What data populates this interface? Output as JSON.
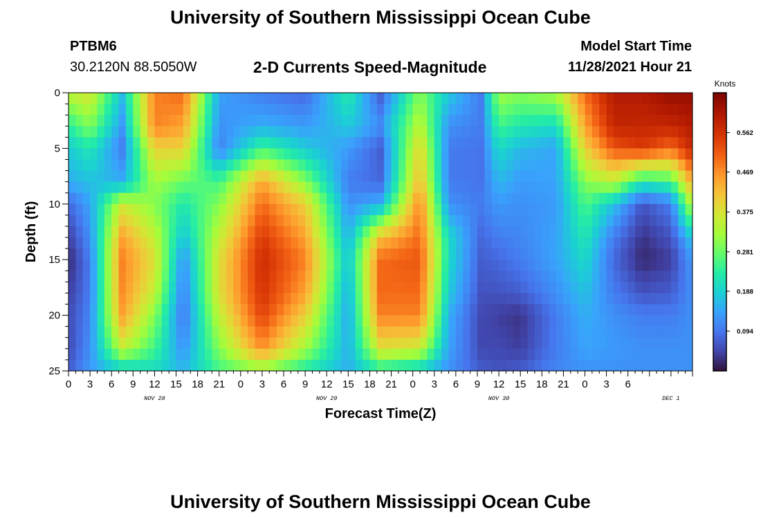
{
  "header": {
    "title": "University of Southern Mississippi Ocean Cube",
    "station": "PTBM6",
    "location": "30.2120N  88.5050W",
    "subtitle": "2-D Currents Speed-Magnitude",
    "model_start_label": "Model Start Time",
    "model_start_value": "11/28/2021 Hour 21"
  },
  "footer": {
    "title": "University of Southern Mississippi Ocean Cube"
  },
  "chart_data": {
    "type": "heatmap",
    "title": "2-D Currents Speed-Magnitude",
    "xlabel": "Forecast Time(Z)",
    "ylabel": "Depth (ft)",
    "x_hours": [
      0,
      87
    ],
    "x_tick_labels": [
      "0",
      "3",
      "6",
      "9",
      "12",
      "15",
      "18",
      "21",
      "0",
      "3",
      "6",
      "9",
      "12",
      "15",
      "18",
      "21",
      "0",
      "3",
      "6",
      "9",
      "12",
      "15",
      "18",
      "21",
      "0",
      "3",
      "6"
    ],
    "date_labels": [
      {
        "label": "NOV 28",
        "hour": 12
      },
      {
        "label": "NOV 29",
        "hour": 36
      },
      {
        "label": "NOV 30",
        "hour": 60
      },
      {
        "label": "DEC 1",
        "hour": 84
      }
    ],
    "y_ticks": [
      0,
      5,
      10,
      15,
      20,
      25
    ],
    "ylim": [
      0,
      25
    ],
    "y_inverted": true,
    "colorbar": {
      "unit": "Knots",
      "range": [
        0,
        0.656
      ],
      "labels": [
        "0.562",
        "0.469",
        "0.375",
        "0.281",
        "0.188",
        "0.094"
      ]
    },
    "grid_times": [
      0,
      3,
      7.5,
      12,
      16,
      21,
      27,
      33,
      39,
      43.5,
      49,
      53,
      57.5,
      60,
      63,
      68,
      72,
      76,
      80,
      84,
      87
    ],
    "grid_depths": [
      0,
      3,
      5,
      8,
      10,
      13,
      15,
      18,
      20,
      23,
      25
    ],
    "speed_knots": [
      [
        0.35,
        0.37,
        0.17,
        0.48,
        0.5,
        0.14,
        0.1,
        0.08,
        0.23,
        0.07,
        0.3,
        0.18,
        0.1,
        0.32,
        0.3,
        0.33,
        0.5,
        0.6,
        0.6,
        0.63,
        0.63
      ],
      [
        0.23,
        0.3,
        0.13,
        0.48,
        0.45,
        0.12,
        0.15,
        0.13,
        0.18,
        0.12,
        0.35,
        0.12,
        0.1,
        0.25,
        0.22,
        0.2,
        0.45,
        0.58,
        0.58,
        0.58,
        0.6
      ],
      [
        0.18,
        0.22,
        0.1,
        0.4,
        0.4,
        0.1,
        0.25,
        0.18,
        0.13,
        0.07,
        0.4,
        0.1,
        0.09,
        0.2,
        0.16,
        0.14,
        0.4,
        0.52,
        0.55,
        0.5,
        0.58
      ],
      [
        0.15,
        0.17,
        0.15,
        0.32,
        0.28,
        0.25,
        0.45,
        0.3,
        0.1,
        0.08,
        0.43,
        0.1,
        0.09,
        0.16,
        0.13,
        0.14,
        0.3,
        0.35,
        0.22,
        0.25,
        0.45
      ],
      [
        0.08,
        0.14,
        0.36,
        0.3,
        0.22,
        0.3,
        0.5,
        0.4,
        0.12,
        0.15,
        0.48,
        0.12,
        0.1,
        0.13,
        0.12,
        0.13,
        0.26,
        0.17,
        0.06,
        0.1,
        0.35
      ],
      [
        0.04,
        0.12,
        0.45,
        0.35,
        0.17,
        0.35,
        0.55,
        0.45,
        0.15,
        0.42,
        0.5,
        0.2,
        0.08,
        0.1,
        0.11,
        0.14,
        0.22,
        0.1,
        0.03,
        0.06,
        0.18
      ],
      [
        0.02,
        0.1,
        0.48,
        0.38,
        0.12,
        0.38,
        0.57,
        0.48,
        0.17,
        0.5,
        0.52,
        0.2,
        0.07,
        0.08,
        0.1,
        0.14,
        0.2,
        0.08,
        0.02,
        0.04,
        0.13
      ],
      [
        0.04,
        0.1,
        0.47,
        0.35,
        0.1,
        0.38,
        0.56,
        0.45,
        0.15,
        0.5,
        0.5,
        0.18,
        0.06,
        0.06,
        0.07,
        0.12,
        0.17,
        0.1,
        0.06,
        0.07,
        0.12
      ],
      [
        0.05,
        0.11,
        0.45,
        0.3,
        0.09,
        0.35,
        0.54,
        0.4,
        0.14,
        0.48,
        0.48,
        0.15,
        0.05,
        0.04,
        0.03,
        0.1,
        0.15,
        0.12,
        0.1,
        0.1,
        0.12
      ],
      [
        0.05,
        0.12,
        0.35,
        0.25,
        0.12,
        0.3,
        0.47,
        0.32,
        0.15,
        0.38,
        0.36,
        0.14,
        0.05,
        0.05,
        0.04,
        0.1,
        0.14,
        0.13,
        0.12,
        0.12,
        0.12
      ],
      [
        0.07,
        0.13,
        0.18,
        0.2,
        0.16,
        0.25,
        0.3,
        0.22,
        0.15,
        0.22,
        0.18,
        0.12,
        0.07,
        0.06,
        0.07,
        0.11,
        0.12,
        0.12,
        0.12,
        0.12,
        0.12
      ]
    ]
  }
}
